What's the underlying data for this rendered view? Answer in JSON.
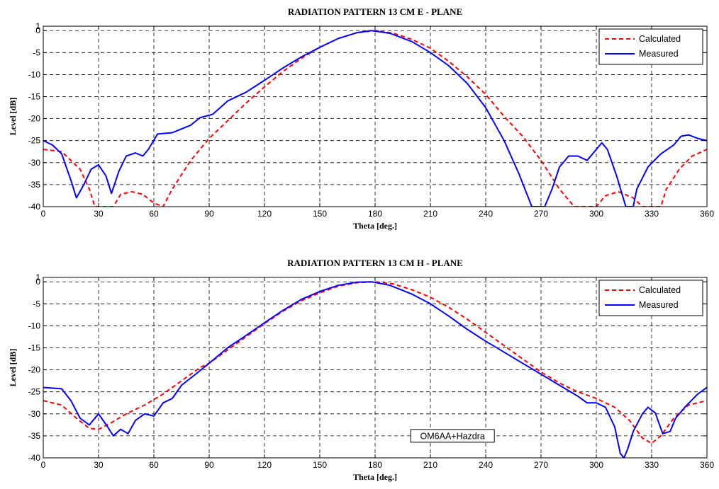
{
  "chart_data": [
    {
      "type": "line",
      "title": "RADIATION PATTERN 13 CM E - PLANE",
      "xlabel": "Theta [deg.]",
      "ylabel": "Level [dB]",
      "xlim": [
        0,
        360
      ],
      "ylim": [
        -40,
        1
      ],
      "xticks": [
        0,
        30,
        60,
        90,
        120,
        150,
        180,
        210,
        240,
        270,
        300,
        330,
        360
      ],
      "yticks": [
        1,
        0,
        -5,
        -10,
        -15,
        -20,
        -25,
        -30,
        -35,
        -40
      ],
      "grid": true,
      "legend": "top-right",
      "series": [
        {
          "name": "Calculated",
          "color": "#ff0000",
          "style": "dashed",
          "points": [
            [
              0,
              -27
            ],
            [
              10,
              -27.5
            ],
            [
              20,
              -31.5
            ],
            [
              25,
              -36
            ],
            [
              28,
              -40
            ],
            [
              38,
              -40
            ],
            [
              42,
              -37.2
            ],
            [
              48,
              -36.6
            ],
            [
              54,
              -37.2
            ],
            [
              60,
              -39.2
            ],
            [
              65,
              -40
            ],
            [
              70,
              -36
            ],
            [
              80,
              -29.5
            ],
            [
              90,
              -24.5
            ],
            [
              100,
              -20.5
            ],
            [
              110,
              -16.5
            ],
            [
              120,
              -12.8
            ],
            [
              130,
              -9.3
            ],
            [
              140,
              -6.3
            ],
            [
              150,
              -3.8
            ],
            [
              160,
              -1.8
            ],
            [
              170,
              -0.5
            ],
            [
              180,
              0
            ],
            [
              190,
              -0.6
            ],
            [
              200,
              -2
            ],
            [
              210,
              -4
            ],
            [
              220,
              -7
            ],
            [
              230,
              -10.5
            ],
            [
              240,
              -14.5
            ],
            [
              250,
              -19.5
            ],
            [
              260,
              -24
            ],
            [
              270,
              -29.5
            ],
            [
              280,
              -36
            ],
            [
              288,
              -40
            ],
            [
              300,
              -40
            ],
            [
              305,
              -37.5
            ],
            [
              312,
              -36.6
            ],
            [
              320,
              -38
            ],
            [
              325,
              -40
            ],
            [
              335,
              -40
            ],
            [
              338,
              -36
            ],
            [
              345,
              -31.5
            ],
            [
              352,
              -28.5
            ],
            [
              360,
              -27
            ]
          ]
        },
        {
          "name": "Measured",
          "color": "#0000ff",
          "style": "solid",
          "points": [
            [
              0,
              -25
            ],
            [
              5,
              -26
            ],
            [
              10,
              -28
            ],
            [
              15,
              -34
            ],
            [
              18,
              -38
            ],
            [
              22,
              -35
            ],
            [
              26,
              -31.5
            ],
            [
              30,
              -30.5
            ],
            [
              34,
              -33
            ],
            [
              37,
              -37
            ],
            [
              41,
              -32
            ],
            [
              45,
              -28.5
            ],
            [
              50,
              -27.8
            ],
            [
              54,
              -28.5
            ],
            [
              57,
              -27
            ],
            [
              62,
              -23.5
            ],
            [
              70,
              -23.2
            ],
            [
              80,
              -21.5
            ],
            [
              85,
              -19.8
            ],
            [
              92,
              -19
            ],
            [
              100,
              -16
            ],
            [
              110,
              -14
            ],
            [
              120,
              -11.3
            ],
            [
              130,
              -8.5
            ],
            [
              140,
              -6
            ],
            [
              150,
              -3.8
            ],
            [
              160,
              -1.8
            ],
            [
              170,
              -0.5
            ],
            [
              178,
              0
            ],
            [
              188,
              -0.6
            ],
            [
              200,
              -2.5
            ],
            [
              210,
              -5
            ],
            [
              220,
              -8
            ],
            [
              230,
              -12
            ],
            [
              240,
              -17.5
            ],
            [
              250,
              -25
            ],
            [
              258,
              -32.5
            ],
            [
              265,
              -40
            ],
            [
              272,
              -40
            ],
            [
              276,
              -36
            ],
            [
              280,
              -31
            ],
            [
              285,
              -28.5
            ],
            [
              290,
              -28.5
            ],
            [
              295,
              -29.5
            ],
            [
              300,
              -27
            ],
            [
              303,
              -25.5
            ],
            [
              306,
              -27
            ],
            [
              311,
              -33
            ],
            [
              316,
              -40
            ],
            [
              320,
              -40
            ],
            [
              322,
              -36
            ],
            [
              328,
              -31
            ],
            [
              335,
              -28
            ],
            [
              342,
              -26
            ],
            [
              346,
              -24
            ],
            [
              350,
              -23.7
            ],
            [
              355,
              -24.5
            ],
            [
              360,
              -25
            ]
          ]
        }
      ]
    },
    {
      "type": "line",
      "title": "RADIATION PATTERN 13 CM H - PLANE",
      "xlabel": "Theta [deg.]",
      "ylabel": "Level [dB]",
      "xlim": [
        0,
        360
      ],
      "ylim": [
        -40,
        1
      ],
      "xticks": [
        0,
        30,
        60,
        90,
        120,
        150,
        180,
        210,
        240,
        270,
        300,
        330,
        360
      ],
      "yticks": [
        1,
        0,
        -5,
        -10,
        -15,
        -20,
        -25,
        -30,
        -35,
        -40
      ],
      "grid": true,
      "legend": "top-right",
      "annotation": "OM6AA+Hazdra",
      "series": [
        {
          "name": "Calculated",
          "color": "#ff0000",
          "style": "dashed",
          "points": [
            [
              0,
              -27
            ],
            [
              10,
              -28
            ],
            [
              18,
              -31
            ],
            [
              25,
              -33.3
            ],
            [
              30,
              -33.5
            ],
            [
              37,
              -32
            ],
            [
              45,
              -30
            ],
            [
              55,
              -28
            ],
            [
              65,
              -25.5
            ],
            [
              75,
              -22.5
            ],
            [
              85,
              -19.5
            ],
            [
              90,
              -18.5
            ],
            [
              100,
              -15.5
            ],
            [
              110,
              -12.5
            ],
            [
              120,
              -9.5
            ],
            [
              130,
              -6.7
            ],
            [
              140,
              -4.3
            ],
            [
              150,
              -2.5
            ],
            [
              160,
              -1
            ],
            [
              170,
              -0.2
            ],
            [
              180,
              0
            ],
            [
              190,
              -0.5
            ],
            [
              200,
              -1.8
            ],
            [
              210,
              -3.5
            ],
            [
              220,
              -5.8
            ],
            [
              230,
              -8.5
            ],
            [
              240,
              -11.5
            ],
            [
              250,
              -14.5
            ],
            [
              260,
              -17.5
            ],
            [
              270,
              -20.5
            ],
            [
              280,
              -23
            ],
            [
              290,
              -25
            ],
            [
              300,
              -26.5
            ],
            [
              310,
              -28.5
            ],
            [
              318,
              -31.5
            ],
            [
              325,
              -35.5
            ],
            [
              330,
              -36.7
            ],
            [
              335,
              -35
            ],
            [
              342,
              -31
            ],
            [
              350,
              -28
            ],
            [
              360,
              -27
            ]
          ]
        },
        {
          "name": "Measured",
          "color": "#0000ff",
          "style": "solid",
          "points": [
            [
              0,
              -24
            ],
            [
              10,
              -24.3
            ],
            [
              15,
              -27
            ],
            [
              20,
              -31
            ],
            [
              25,
              -32.5
            ],
            [
              30,
              -30
            ],
            [
              35,
              -33
            ],
            [
              38,
              -35
            ],
            [
              42,
              -33.5
            ],
            [
              46,
              -34.5
            ],
            [
              50,
              -31.5
            ],
            [
              55,
              -30
            ],
            [
              60,
              -30.5
            ],
            [
              65,
              -27.5
            ],
            [
              70,
              -26.5
            ],
            [
              75,
              -23.5
            ],
            [
              82,
              -21.2
            ],
            [
              90,
              -18.5
            ],
            [
              100,
              -15
            ],
            [
              110,
              -12.2
            ],
            [
              120,
              -9.3
            ],
            [
              130,
              -6.5
            ],
            [
              140,
              -4
            ],
            [
              150,
              -2.2
            ],
            [
              160,
              -0.8
            ],
            [
              170,
              -0.1
            ],
            [
              178,
              0
            ],
            [
              188,
              -0.8
            ],
            [
              200,
              -2.8
            ],
            [
              210,
              -5
            ],
            [
              220,
              -7.8
            ],
            [
              230,
              -10.8
            ],
            [
              240,
              -13.5
            ],
            [
              250,
              -16
            ],
            [
              260,
              -18.5
            ],
            [
              270,
              -21
            ],
            [
              280,
              -23.5
            ],
            [
              290,
              -26
            ],
            [
              295,
              -27.5
            ],
            [
              300,
              -27.5
            ],
            [
              305,
              -28.5
            ],
            [
              310,
              -33
            ],
            [
              313,
              -39
            ],
            [
              315,
              -40
            ],
            [
              317,
              -38
            ],
            [
              320,
              -34
            ],
            [
              325,
              -30
            ],
            [
              328,
              -28.5
            ],
            [
              332,
              -29.8
            ],
            [
              336,
              -34.5
            ],
            [
              340,
              -34
            ],
            [
              343,
              -31
            ],
            [
              348,
              -28.5
            ],
            [
              355,
              -25.5
            ],
            [
              360,
              -24
            ]
          ]
        }
      ]
    }
  ]
}
